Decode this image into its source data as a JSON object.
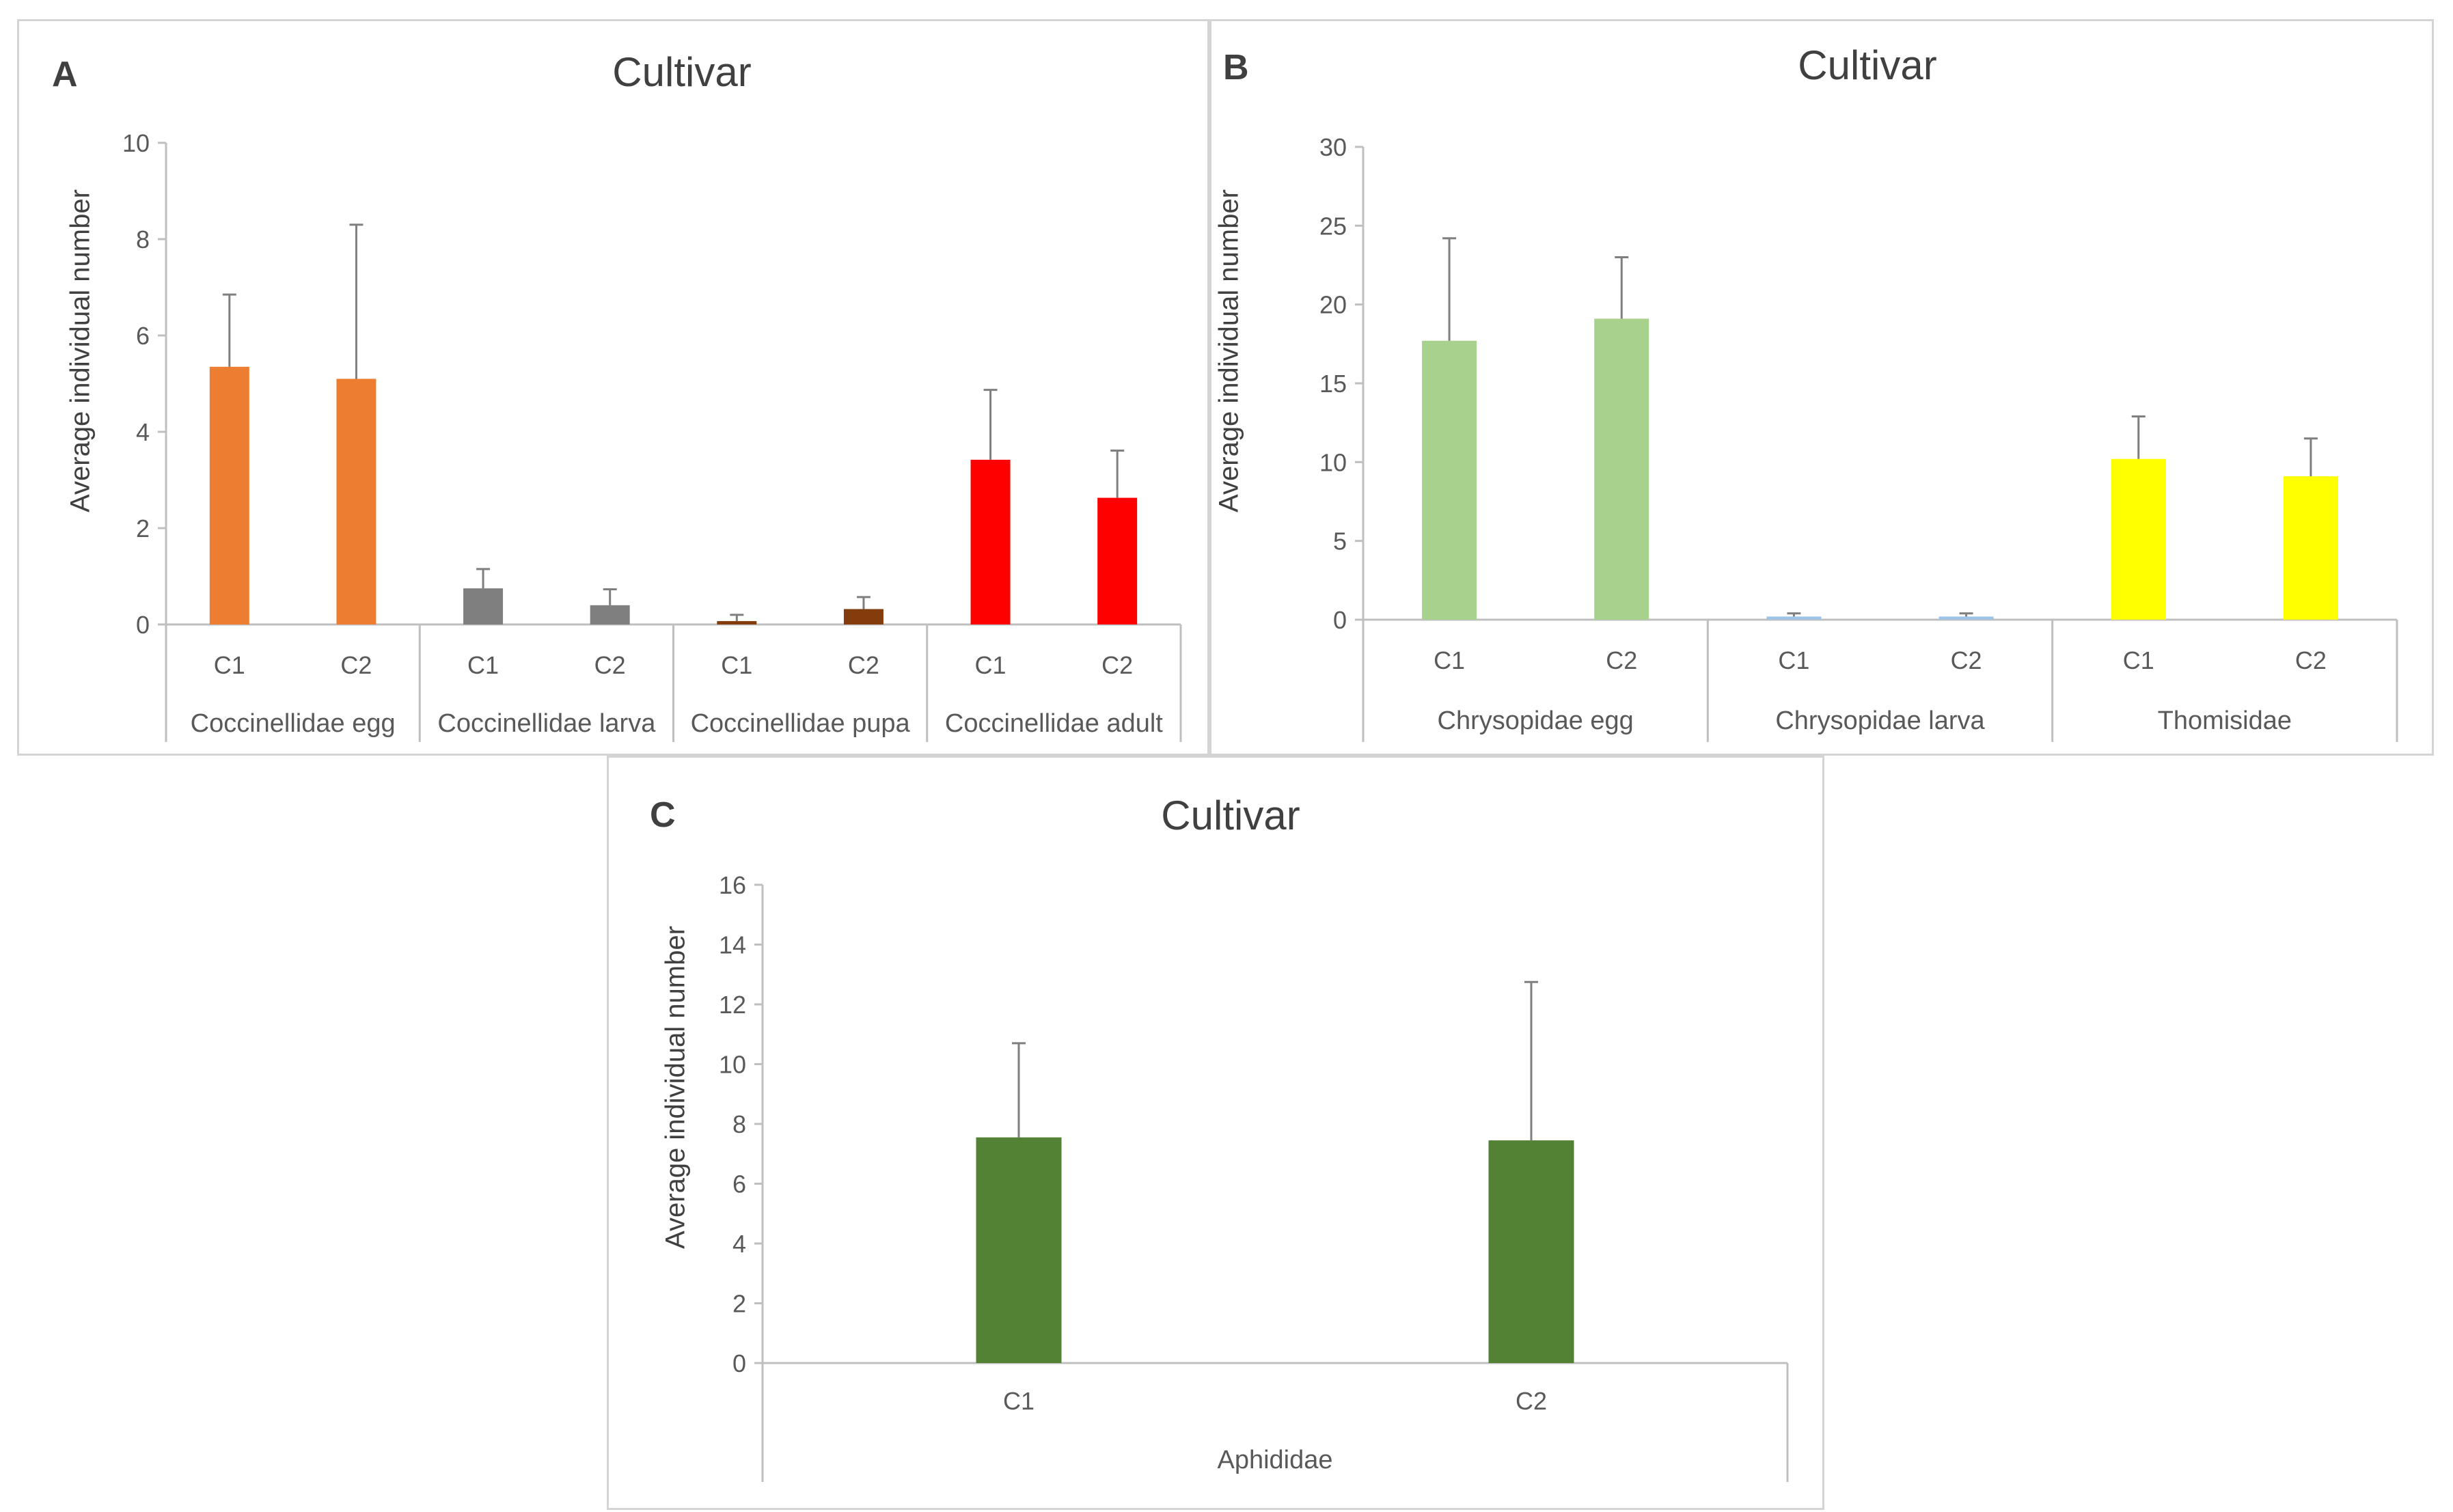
{
  "figure": {
    "panels": [
      {
        "letter": "A",
        "title": "Cultivar",
        "ylabel": "Average individual number"
      },
      {
        "letter": "B",
        "title": "Cultivar",
        "ylabel": "Average individual number"
      },
      {
        "letter": "C",
        "title": "Cultivar",
        "ylabel": "Average individual number"
      }
    ]
  },
  "chart_data": [
    {
      "type": "bar",
      "panel": "A",
      "title": "Cultivar",
      "ylabel": "Average individual number",
      "xlabel": "",
      "ylim": [
        0,
        10
      ],
      "yticks": [
        0,
        2,
        4,
        6,
        8,
        10
      ],
      "groups": [
        "Coccinellidae egg",
        "Coccinellidae larva",
        "Coccinellidae pupa",
        "Coccinellidae adult"
      ],
      "categories": [
        "C1",
        "C2"
      ],
      "values": [
        [
          5.35,
          5.1
        ],
        [
          0.75,
          0.4
        ],
        [
          0.07,
          0.32
        ],
        [
          3.42,
          2.63
        ]
      ],
      "errors": [
        [
          1.5,
          3.2
        ],
        [
          0.4,
          0.33
        ],
        [
          0.13,
          0.25
        ],
        [
          1.45,
          0.98
        ]
      ],
      "colors": [
        "#ed7d31",
        "#7f7f7f",
        "#843c0c",
        "#ff0000"
      ]
    },
    {
      "type": "bar",
      "panel": "B",
      "title": "Cultivar",
      "ylabel": "Average individual number",
      "xlabel": "",
      "ylim": [
        0,
        30
      ],
      "yticks": [
        0,
        5,
        10,
        15,
        20,
        25,
        30
      ],
      "groups": [
        "Chrysopidae egg",
        "Chrysopidae larva",
        "Thomisidae"
      ],
      "categories": [
        "C1",
        "C2"
      ],
      "values": [
        [
          17.7,
          19.1
        ],
        [
          0.2,
          0.2
        ],
        [
          10.2,
          9.1
        ]
      ],
      "errors": [
        [
          6.5,
          3.9
        ],
        [
          0.2,
          0.2
        ],
        [
          2.7,
          2.4
        ]
      ],
      "colors": [
        "#a9d18e",
        "#9dc3e6",
        "#ffff00"
      ]
    },
    {
      "type": "bar",
      "panel": "C",
      "title": "Cultivar",
      "ylabel": "Average individual number",
      "xlabel": "",
      "ylim": [
        0,
        16
      ],
      "yticks": [
        0,
        2,
        4,
        6,
        8,
        10,
        12,
        14,
        16
      ],
      "groups": [
        "Aphididae"
      ],
      "categories": [
        "C1",
        "C2"
      ],
      "values": [
        [
          7.55,
          7.45
        ]
      ],
      "errors": [
        [
          3.15,
          5.3
        ]
      ],
      "colors": [
        "#548235"
      ]
    }
  ]
}
